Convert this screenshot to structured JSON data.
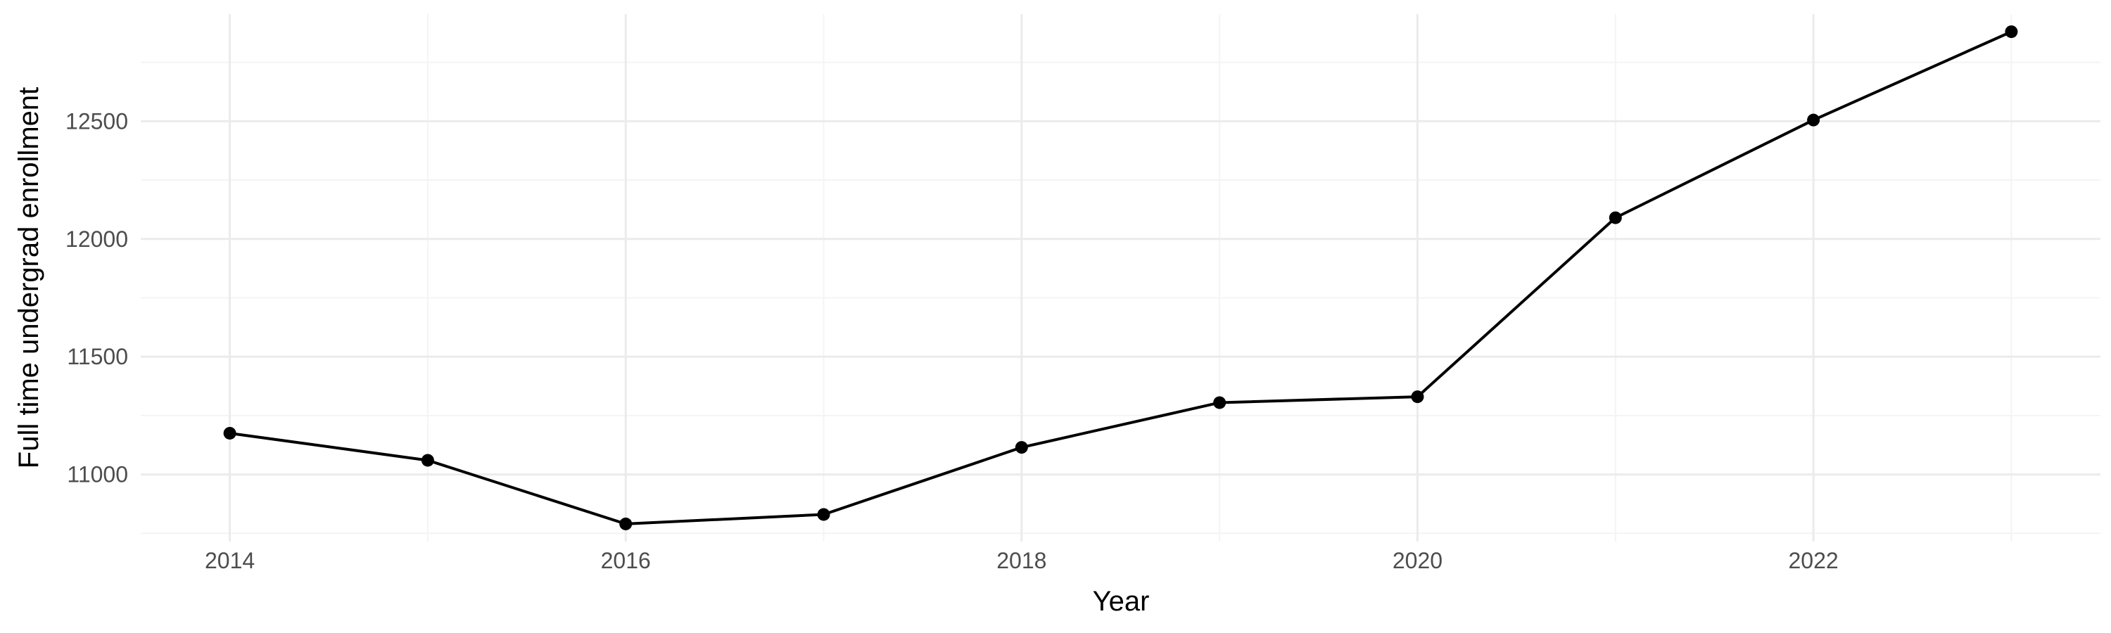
{
  "chart_data": {
    "type": "line",
    "title": "",
    "xlabel": "Year",
    "ylabel": "Full time undergrad enrollment",
    "x": [
      2014,
      2015,
      2016,
      2017,
      2018,
      2019,
      2020,
      2021,
      2022,
      2023
    ],
    "series": [
      {
        "values": [
          11175,
          11060,
          10790,
          10830,
          11115,
          11305,
          11330,
          12090,
          12505,
          12880
        ]
      }
    ],
    "xlim": [
      2013.55,
      2023.45
    ],
    "ylim": [
      10715,
      12955
    ],
    "xticks": [
      2014,
      2016,
      2018,
      2020,
      2022
    ],
    "xtick_labels": [
      "2014",
      "2016",
      "2018",
      "2020",
      "2022"
    ],
    "yticks": [
      11000,
      11500,
      12000,
      12500
    ],
    "ytick_labels": [
      "11000",
      "11500",
      "12000",
      "12500"
    ],
    "x_minor": [
      2015,
      2017,
      2019,
      2021,
      2023
    ],
    "y_minor": [
      10750,
      11250,
      11750,
      12250,
      12750
    ],
    "grid": true,
    "legend": "none",
    "colors": {
      "line": "#000000",
      "point": "#000000",
      "grid_major": "#ebebeb",
      "grid_minor": "#f4f4f4",
      "tick_text": "#4d4d4d",
      "title_text": "#000000"
    }
  }
}
